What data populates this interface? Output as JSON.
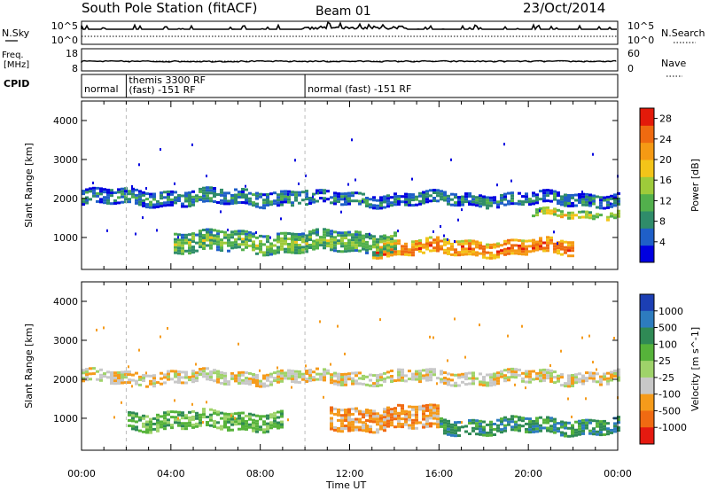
{
  "header": {
    "title": "South Pole Station (fitACF)",
    "beam": "Beam 01",
    "date": "23/Oct/2014"
  },
  "params": {
    "nsky_label": "N.Sky",
    "nsearch_label": "N.Search",
    "freq_label_1": "Freq.",
    "freq_label_2": "[MHz]",
    "nave_label": "Nave",
    "cpid_label": "CPID",
    "noise_ticks_left": [
      "10^5",
      "10^0"
    ],
    "noise_ticks_right": [
      "10^5",
      "10^0"
    ],
    "freq_ticks": [
      "18",
      "8"
    ],
    "nave_ticks": [
      "60",
      "0"
    ],
    "cpid_segments": [
      {
        "start_hour": 0.0,
        "label": "normal"
      },
      {
        "start_hour": 2.0,
        "label": "themis 3300 RF\n(fast) -151 RF"
      },
      {
        "start_hour": 10.0,
        "label": "normal (fast) -151 RF"
      }
    ]
  },
  "chart_data": [
    {
      "type": "heatmap",
      "title": "Power",
      "xlabel": "Time UT",
      "ylabel": "Slant Range [km]",
      "xlim": [
        0,
        24
      ],
      "ylim": [
        180,
        4500
      ],
      "x_ticks": [
        "00:00",
        "04:00",
        "08:00",
        "12:00",
        "16:00",
        "20:00",
        "00:00"
      ],
      "y_ticks": [
        1000,
        2000,
        3000,
        4000
      ],
      "colorbar": {
        "label": "Power [dB]",
        "ticks": [
          4,
          8,
          12,
          16,
          20,
          24,
          28
        ],
        "range": [
          0,
          30
        ],
        "colors": [
          "#0000e0",
          "#1f5fc8",
          "#2f8c6a",
          "#52b04c",
          "#9ecb3a",
          "#f3c419",
          "#f59a14",
          "#ef6a10",
          "#e31a0a"
        ]
      },
      "bands": [
        {
          "start_hour": 0.0,
          "end_hour": 10.0,
          "range_center_km": 2050,
          "range_width_km": 350,
          "level_db": 9
        },
        {
          "start_hour": 10.0,
          "end_hour": 24.0,
          "range_center_km": 2000,
          "range_width_km": 300,
          "level_db": 8
        },
        {
          "start_hour": 13.0,
          "end_hour": 22.0,
          "range_center_km": 750,
          "range_width_km": 380,
          "level_db": 26
        },
        {
          "start_hour": 4.0,
          "end_hour": 14.0,
          "range_center_km": 900,
          "range_width_km": 500,
          "level_db": 14
        },
        {
          "start_hour": 20.0,
          "end_hour": 24.0,
          "range_center_km": 1600,
          "range_width_km": 200,
          "level_db": 18
        }
      ]
    },
    {
      "type": "heatmap",
      "title": "Velocity",
      "xlabel": "Time UT",
      "ylabel": "Slant Range [km]",
      "xlim": [
        0,
        24
      ],
      "ylim": [
        180,
        4500
      ],
      "x_ticks": [
        "00:00",
        "04:00",
        "08:00",
        "12:00",
        "16:00",
        "20:00",
        "00:00"
      ],
      "y_ticks": [
        1000,
        2000,
        3000,
        4000
      ],
      "colorbar": {
        "label": "Velocity [m s^-1]",
        "ticks": [
          "1000",
          "500",
          "100",
          "25",
          "-25",
          "-100",
          "-500",
          "-1000"
        ],
        "colors": [
          "#1c3fb4",
          "#2d7cbf",
          "#2f8a55",
          "#56b33a",
          "#9fd36a",
          "#c8c8c8",
          "#f59b1b",
          "#f06a12",
          "#e51a10"
        ]
      },
      "bands": [
        {
          "start_hour": 0.0,
          "end_hour": 24.0,
          "range_center_km": 2050,
          "range_width_km": 330,
          "level_index": 5
        },
        {
          "start_hour": 11.0,
          "end_hour": 16.0,
          "range_center_km": 1000,
          "range_width_km": 600,
          "level_index": 6
        },
        {
          "start_hour": 16.0,
          "end_hour": 24.0,
          "range_center_km": 800,
          "range_width_km": 400,
          "level_index": 2
        },
        {
          "start_hour": 2.0,
          "end_hour": 9.0,
          "range_center_km": 950,
          "range_width_km": 450,
          "level_index": 3
        }
      ]
    }
  ]
}
